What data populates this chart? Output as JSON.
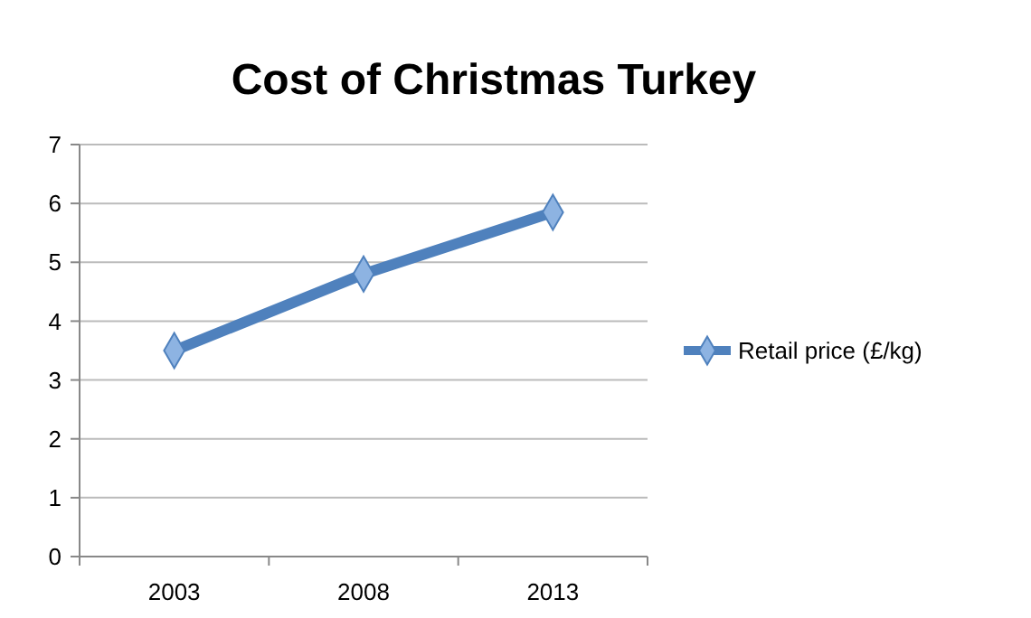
{
  "chart_data": {
    "type": "line",
    "title": "Cost of Christmas Turkey",
    "categories": [
      "2003",
      "2008",
      "2013"
    ],
    "series": [
      {
        "name": "Retail price (£/kg)",
        "color": "#4f81bd",
        "values": [
          3.5,
          4.8,
          5.85
        ]
      }
    ],
    "ylim": [
      0,
      7
    ],
    "yticks": [
      0,
      1,
      2,
      3,
      4,
      5,
      6,
      7
    ],
    "grid": "y",
    "legend": "right",
    "marker": "diamond",
    "line_style": "solid"
  }
}
